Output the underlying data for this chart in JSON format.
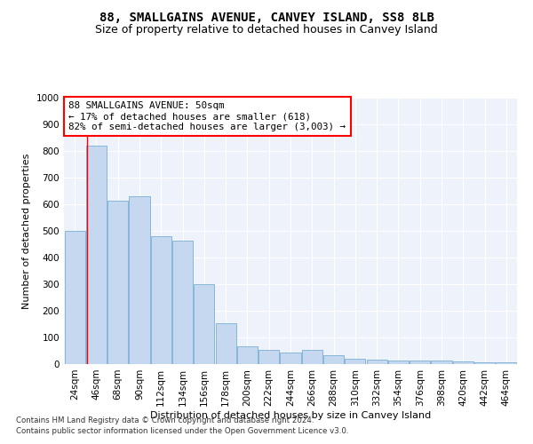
{
  "title": "88, SMALLGAINS AVENUE, CANVEY ISLAND, SS8 8LB",
  "subtitle": "Size of property relative to detached houses in Canvey Island",
  "xlabel": "Distribution of detached houses by size in Canvey Island",
  "ylabel": "Number of detached properties",
  "footnote1": "Contains HM Land Registry data © Crown copyright and database right 2024.",
  "footnote2": "Contains public sector information licensed under the Open Government Licence v3.0.",
  "annotation_title": "88 SMALLGAINS AVENUE: 50sqm",
  "annotation_line2": "← 17% of detached houses are smaller (618)",
  "annotation_line3": "82% of semi-detached houses are larger (3,003) →",
  "bar_color": "#c5d8f0",
  "bar_edge_color": "#7aafd4",
  "categories": [
    "24sqm",
    "46sqm",
    "68sqm",
    "90sqm",
    "112sqm",
    "134sqm",
    "156sqm",
    "178sqm",
    "200sqm",
    "222sqm",
    "244sqm",
    "266sqm",
    "288sqm",
    "310sqm",
    "332sqm",
    "354sqm",
    "376sqm",
    "398sqm",
    "420sqm",
    "442sqm",
    "464sqm"
  ],
  "values": [
    500,
    820,
    615,
    630,
    480,
    465,
    300,
    155,
    68,
    52,
    42,
    55,
    35,
    20,
    18,
    14,
    14,
    14,
    10,
    8,
    8
  ],
  "ylim": [
    0,
    1000
  ],
  "yticks": [
    0,
    100,
    200,
    300,
    400,
    500,
    600,
    700,
    800,
    900,
    1000
  ],
  "background_color": "#edf2fb",
  "grid_color": "#ffffff",
  "title_fontsize": 10,
  "subtitle_fontsize": 9,
  "axis_label_fontsize": 8,
  "tick_fontsize": 7.5,
  "annotation_fontsize": 7.8
}
